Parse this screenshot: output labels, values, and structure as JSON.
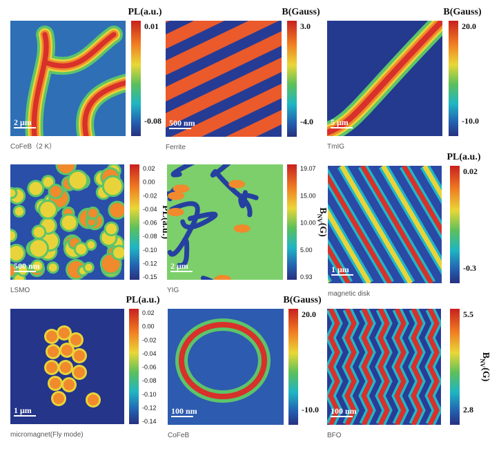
{
  "panels": [
    {
      "caption": "CoFeB（2 K）",
      "scale_bar": "2 μm",
      "colorbar": {
        "title": "PL(a.u.)",
        "ticks": [
          "0.01",
          "-0.08"
        ]
      }
    },
    {
      "caption": "Ferrite",
      "scale_bar": "500 nm",
      "colorbar": {
        "title": "B(Gauss)",
        "ticks": [
          "3.0",
          "-4.0"
        ]
      }
    },
    {
      "caption": "TmIG",
      "scale_bar": "5 μm",
      "colorbar": {
        "title": "B(Gauss)",
        "ticks": [
          "20.0",
          "-10.0"
        ]
      }
    },
    {
      "caption": "LSMO",
      "scale_bar": "500 nm",
      "colorbar": {
        "side_label": "PL(a.u.)",
        "ticks": [
          "0.02",
          "0.00",
          "-0.02",
          "-0.04",
          "-0.06",
          "-0.08",
          "-0.10",
          "-0.12",
          "-0.15"
        ]
      }
    },
    {
      "caption": "YIG",
      "scale_bar": "2 μm",
      "colorbar": {
        "side_label": {
          "main": "B",
          "sub": "NV",
          "unit": "(G)"
        },
        "ticks": [
          "19.07",
          "15.00",
          "10.00",
          "5.00",
          "0.93"
        ]
      }
    },
    {
      "caption": "magnetic disk",
      "scale_bar": "1 μm",
      "colorbar": {
        "title": "PL(a.u.)",
        "ticks": [
          "0.02",
          "-0.3"
        ]
      }
    },
    {
      "caption": "micromagnet(Fly mode)",
      "scale_bar": "1 μm",
      "colorbar": {
        "title": "PL(a.u.)",
        "ticks": [
          "0.02",
          "0.00",
          "-0.02",
          "-0.04",
          "-0.06",
          "-0.08",
          "-0.10",
          "-0.12",
          "-0.14"
        ]
      }
    },
    {
      "caption": "CoFeB",
      "scale_bar": "100 nm",
      "colorbar": {
        "title": "B(Gauss)",
        "ticks": [
          "20.0",
          "-10.0"
        ]
      }
    },
    {
      "caption": "BFO",
      "scale_bar": "100 nm",
      "colorbar": {
        "side_label": {
          "main": "B",
          "sub": "NV",
          "unit": "(G)"
        },
        "ticks": [
          "5.5",
          "2.8"
        ]
      }
    }
  ]
}
